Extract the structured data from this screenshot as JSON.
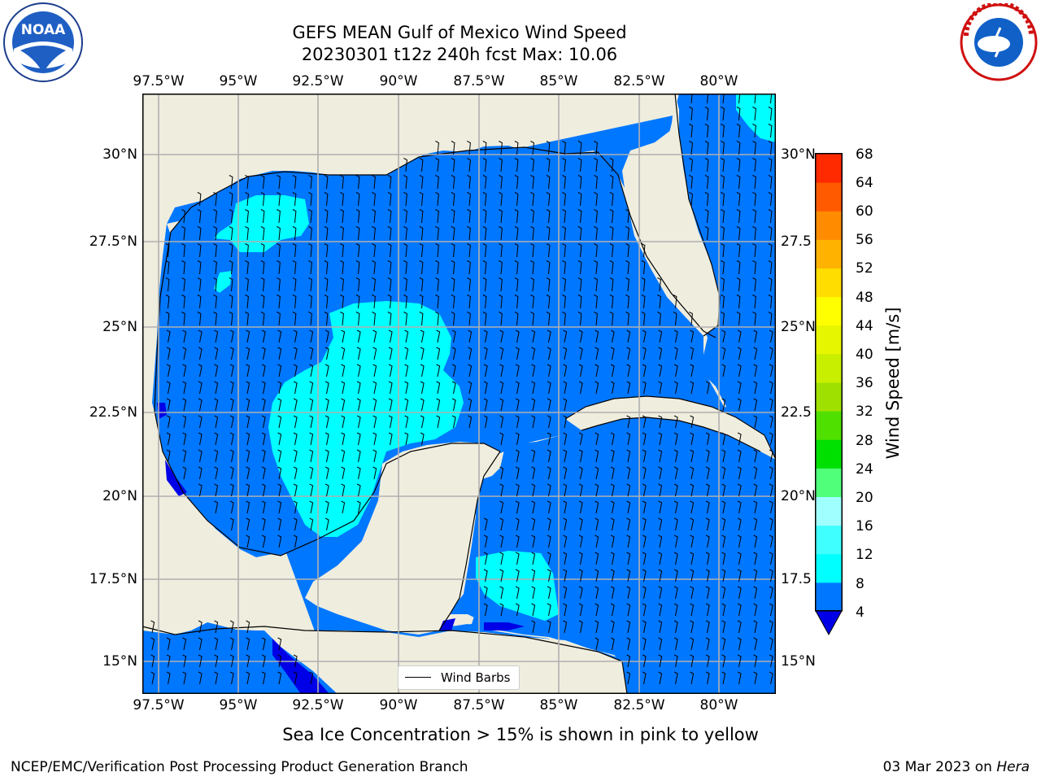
{
  "title": {
    "line1": "GEFS MEAN Gulf of Mexico Wind Speed",
    "line2": "20230301 t12z 240h fcst   Max: 10.06"
  },
  "logos": {
    "left": "noaa-logo",
    "right": "national-weather-service-logo"
  },
  "axes": {
    "lon_labels": [
      "97.5°W",
      "95°W",
      "92.5°W",
      "90°W",
      "87.5°W",
      "85°W",
      "82.5°W",
      "80°W"
    ],
    "lat_labels": [
      "30°N",
      "27.5°N",
      "25°N",
      "22.5°N",
      "20°N",
      "17.5°N",
      "15°N"
    ],
    "right_lat_labels": [
      "30°N",
      "27.5",
      "25°N",
      "22.5",
      "20°N",
      "17.5",
      "15°N"
    ]
  },
  "legend": {
    "label": "Wind Barbs"
  },
  "colorbar": {
    "title": "Wind Speed [m/s]",
    "levels": [
      "4",
      "8",
      "12",
      "16",
      "20",
      "24",
      "28",
      "32",
      "36",
      "40",
      "44",
      "48",
      "52",
      "56",
      "60",
      "64",
      "68"
    ],
    "colors": [
      "#0077ff",
      "#00ffff",
      "#40ffff",
      "#a0ffff",
      "#50ff7a",
      "#00e000",
      "#50e000",
      "#a0e000",
      "#c8ee00",
      "#e6f500",
      "#ffff00",
      "#ffdd00",
      "#ffb300",
      "#ff8c00",
      "#ff5a00",
      "#ff2a00"
    ],
    "underflow_color": "#0000e6"
  },
  "map_colors": {
    "land": "#efedde",
    "water": "#0077ff",
    "cyan": "#00ffff",
    "dark": "#0000e6",
    "grid": "#b0b0b0"
  },
  "caption": "Sea Ice Concentration > 15% is shown in pink to yellow",
  "footer": {
    "left": "NCEP/EMC/Verification Post Processing Product Generation Branch",
    "date": "03 Mar 2023 on ",
    "host": "Hera"
  }
}
